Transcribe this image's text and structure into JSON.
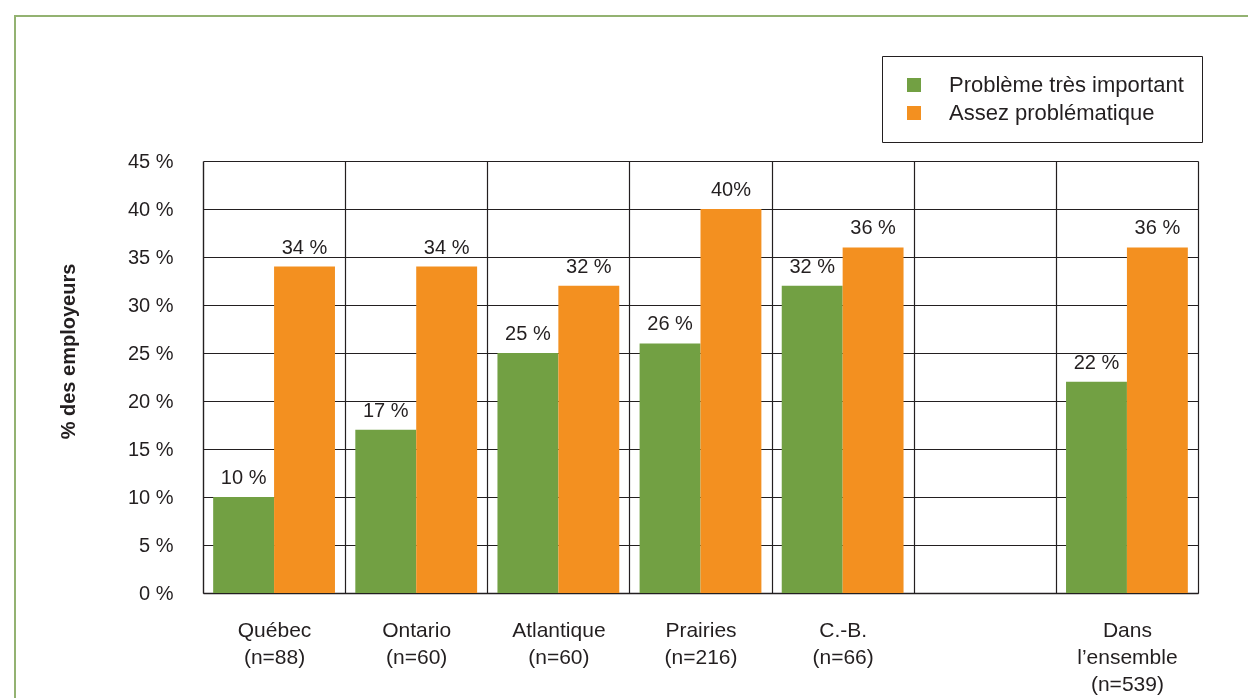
{
  "chart_data": {
    "type": "bar",
    "ylabel": "% des employeurs",
    "categories": [
      "Québec\n(n=88)",
      "Ontario\n(n=60)",
      "Atlantique\n(n=60)",
      "Prairies\n(n=216)",
      "C.-B.\n(n=66)",
      null,
      "Dans\nl’ensemble\n(n=539)"
    ],
    "series": [
      {
        "name": "Problème très important",
        "color": "#72a043",
        "values": [
          10,
          17,
          25,
          26,
          32,
          null,
          22
        ],
        "value_labels": [
          "10 %",
          "17 %",
          "25 %",
          "26  %",
          "32 %",
          null,
          "22 %"
        ]
      },
      {
        "name": "Assez problématique",
        "color": "#f39020",
        "values": [
          34,
          34,
          32,
          40,
          36,
          null,
          36
        ],
        "value_labels": [
          "34 %",
          "34 %",
          "32 %",
          "40%",
          "36 %",
          null,
          "36 %"
        ]
      }
    ],
    "ylim": [
      0,
      45
    ],
    "yticks": [
      {
        "value": 0,
        "label": "0 %"
      },
      {
        "value": 5,
        "label": "5 %"
      },
      {
        "value": 10,
        "label": "10 %"
      },
      {
        "value": 15,
        "label": "15 %"
      },
      {
        "value": 20,
        "label": "20 %"
      },
      {
        "value": 25,
        "label": "25 %"
      },
      {
        "value": 30,
        "label": "30 %"
      },
      {
        "value": 35,
        "label": "35 %"
      },
      {
        "value": 40,
        "label": "40 %"
      },
      {
        "value": 45,
        "label": "45 %"
      }
    ],
    "grid": true,
    "legend": "top right"
  }
}
